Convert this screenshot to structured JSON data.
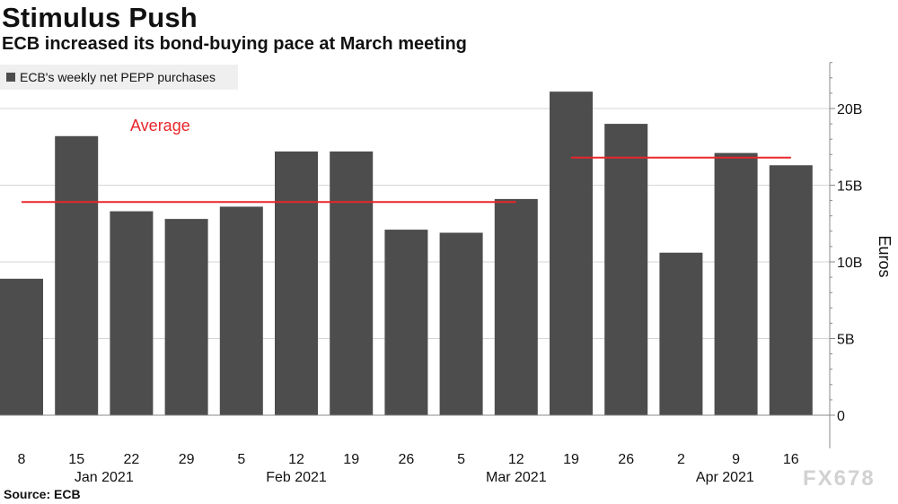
{
  "header": {
    "title": "Stimulus Push",
    "subtitle": "ECB increased its bond-buying pace at March meeting"
  },
  "footer": {
    "source": "Source: ECB",
    "watermark": "FX678"
  },
  "colors": {
    "bar": "#4d4d4d",
    "average_line": "#e8262a",
    "gridline": "#d6d6d6",
    "axis": "#888888",
    "text": "#111111",
    "legend_bg": "#efefef"
  },
  "chart_data": {
    "type": "bar",
    "legend": "ECB's weekly net PEPP purchases",
    "legend_placement": "top-left",
    "categories": [
      "8",
      "15",
      "22",
      "29",
      "5",
      "12",
      "19",
      "26",
      "5",
      "12",
      "19",
      "26",
      "2",
      "9",
      "16"
    ],
    "month_labels": [
      {
        "label": "Jan 2021",
        "center_index": 1.5
      },
      {
        "label": "Feb 2021",
        "center_index": 5
      },
      {
        "label": "Mar 2021",
        "center_index": 9
      },
      {
        "label": "Apr 2021",
        "center_index": 12.8
      }
    ],
    "series": [
      {
        "values": [
          8.9,
          18.2,
          13.3,
          12.8,
          13.6,
          17.2,
          17.2,
          12.1,
          11.9,
          14.1,
          21.1,
          19.0,
          10.6,
          17.1,
          16.3
        ]
      }
    ],
    "averages": [
      {
        "label": "Average",
        "value": 13.9,
        "from_index": 0,
        "to_index": 9
      },
      {
        "label": "",
        "value": 16.8,
        "from_index": 10,
        "to_index": 14
      }
    ],
    "ylabel": "Euros",
    "ylim": [
      0,
      23
    ],
    "yticks": [
      {
        "value": 0,
        "label": "0"
      },
      {
        "value": 5,
        "label": "5B"
      },
      {
        "value": 10,
        "label": "10B"
      },
      {
        "value": 15,
        "label": "15B"
      },
      {
        "value": 20,
        "label": "20B"
      }
    ],
    "grid": true,
    "yaxis_position": "right"
  }
}
